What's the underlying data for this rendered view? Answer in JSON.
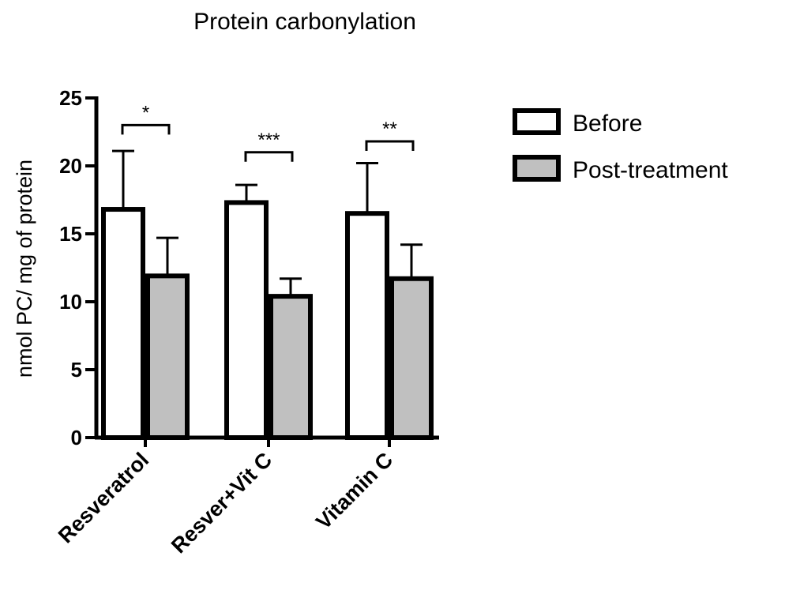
{
  "chart_data": {
    "type": "bar",
    "title": "Protein carbonylation",
    "xlabel": "",
    "ylabel": "nmol PC/ mg of protein",
    "ylim": [
      0,
      25
    ],
    "yticks": [
      "0",
      "5",
      "10",
      "15",
      "20",
      "25"
    ],
    "categories": [
      "Resveratrol",
      "Resver+Vit C",
      "Vitamin C"
    ],
    "series": [
      {
        "name": "Before",
        "values": [
          16.8,
          17.3,
          16.5
        ],
        "errors": [
          4.3,
          1.3,
          3.7
        ],
        "color": "#ffffff"
      },
      {
        "name": "Post-treatment",
        "values": [
          11.9,
          10.4,
          11.7
        ],
        "errors": [
          2.8,
          1.3,
          2.5
        ],
        "color": "#c0c0c0"
      }
    ],
    "significance": [
      "*",
      "***",
      "**"
    ],
    "significance_level": [
      23.0,
      21.0,
      21.8
    ],
    "legend_position": "top-right"
  }
}
